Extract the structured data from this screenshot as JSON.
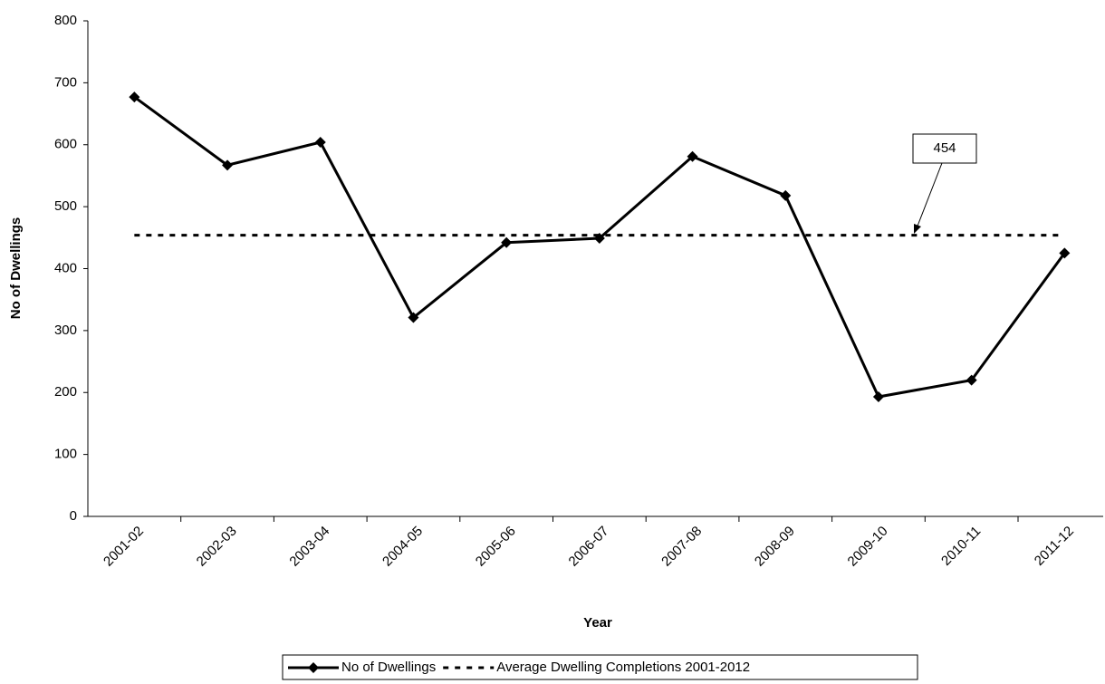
{
  "chart_data": {
    "type": "line",
    "xlabel": "Year",
    "ylabel": "No of Dwellings",
    "categories": [
      "2001-02",
      "2002-03",
      "2003-04",
      "2004-05",
      "2005-06",
      "2006-07",
      "2007-08",
      "2008-09",
      "2009-10",
      "2010-11",
      "2011-12"
    ],
    "series": [
      {
        "name": "No of Dwellings",
        "color": "#000000",
        "style": "solid",
        "marker": "diamond",
        "values": [
          677,
          567,
          604,
          321,
          442,
          449,
          581,
          518,
          193,
          220,
          425
        ]
      },
      {
        "name": "Average Dwelling Completions 2001-2012",
        "color": "#000000",
        "style": "dashed",
        "marker": "none",
        "values": [
          454,
          454,
          454,
          454,
          454,
          454,
          454,
          454,
          454,
          454,
          454
        ]
      }
    ],
    "annotation": "454",
    "ylim": [
      0,
      800
    ],
    "yticks": [
      0,
      100,
      200,
      300,
      400,
      500,
      600,
      700,
      800
    ],
    "grid": false,
    "legend": "bottom"
  }
}
